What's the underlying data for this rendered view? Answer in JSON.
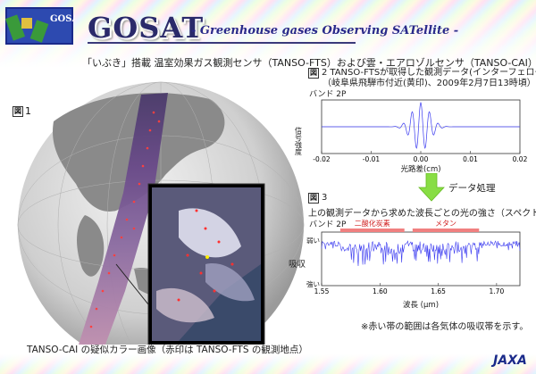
{
  "header": {
    "logo_text": "GOSAT",
    "title": "GOSAT",
    "subtitle": "- Greenhouse gases Observing SATellite -"
  },
  "main_caption": "「いぶき」搭載 温室効果ガス観測センサ（TANSO-FTS）および雲・エアロゾルセンサ（TANSO-CAI）による観測データ",
  "figure1": {
    "badge": "図",
    "number": "1",
    "caption": "TANSO-CAI の疑似カラー画像（赤印は TANSO-FTS の観測地点）"
  },
  "figure2": {
    "badge": "図",
    "number": "2",
    "title": "TANSO-FTSが取得した観測データ(インターフェログラム)",
    "subtitle": "（岐阜県飛騨市付近(黄印)、2009年2月7日13時頃）",
    "band_label": "バンド 2P"
  },
  "process_label": "データ処理",
  "figure3": {
    "badge": "図",
    "number": "3",
    "title": "上の観測データから求めた波長ごとの光の強さ（スペクトル）",
    "band_label": "バンド 2P",
    "co2_label": "二酸化炭素",
    "ch4_label": "メタン"
  },
  "note": "※赤い帯の範囲は各気体の吸収帯を示す。",
  "jaxa_logo": "JAXA",
  "colors": {
    "accent": "#2a2a6a",
    "series": "#3a3af0",
    "arrow": "#88dd44",
    "band": "#f08080"
  },
  "chart_data": [
    {
      "type": "line",
      "title": "",
      "xlabel": "光路差(cm)",
      "ylabel": "信号強度",
      "xlim": [
        -0.02,
        0.02
      ],
      "x_ticks": [
        "-0.02",
        "-0.01",
        "0.00",
        "0.01",
        "0.02"
      ],
      "series": [
        {
          "values": [
            0,
            0,
            0,
            0,
            0.02,
            -0.03,
            0.08,
            -0.2,
            0.45,
            -0.8,
            1.0,
            -0.8,
            0.45,
            -0.2,
            0.08,
            -0.03,
            0.02,
            0,
            0,
            0,
            0
          ]
        }
      ]
    },
    {
      "type": "line",
      "title": "",
      "xlabel": "波長 (μm)",
      "ylabel": "吸収",
      "xlim": [
        1.55,
        1.72
      ],
      "x_ticks": [
        "1.55",
        "1.60",
        "1.65",
        "1.70"
      ],
      "y_ticks": [
        "弱い",
        "強い"
      ],
      "bands": [
        {
          "label": "二酸化炭素",
          "range": [
            1.566,
            1.621
          ]
        },
        {
          "label": "メタン",
          "range": [
            1.628,
            1.685
          ]
        }
      ]
    }
  ]
}
